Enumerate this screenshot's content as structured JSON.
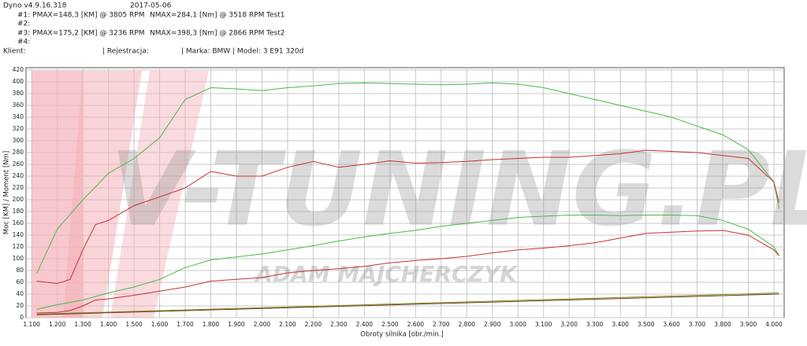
{
  "chart_data": {
    "type": "line",
    "header": {
      "software": "Dyno v4.9.16.318",
      "date": "2017-05-06",
      "run1": "#1: PMAX=148,3 [KM] @ 3805 RPM",
      "run1_torque": "NMAX=284,1 [Nm] @ 3518 RPM",
      "run1_name": "Test1",
      "run2": "#2:",
      "run3": "#3: PMAX=175,2 [KM] @ 3236 RPM",
      "run3_torque": "NMAX=398,3 [Nm] @ 2866 RPM",
      "run3_name": "Test2",
      "run4": "#4:",
      "client": "Klient:",
      "registration": "| Rejestracja:",
      "vehicle": "| Marka: BMW | Model: 3 E91 320d"
    },
    "watermark": "V-TUNING.PL",
    "watermark_author": "ADAM MAJCHERCZYK",
    "y_label": "Moc [KM] / Moment [Nm]",
    "x_label": "Obroty silnika [obr./min.]",
    "x": [
      1120,
      1200,
      1250,
      1300,
      1350,
      1400,
      1500,
      1600,
      1700,
      1800,
      1900,
      2000,
      2100,
      2200,
      2300,
      2400,
      2500,
      2600,
      2700,
      2800,
      2900,
      3000,
      3100,
      3200,
      3300,
      3400,
      3500,
      3600,
      3700,
      3800,
      3900,
      4000,
      4020
    ],
    "series": [
      {
        "color": "#4cb84c",
        "values": [
          75,
          150,
          175,
          200,
          222,
          245,
          270,
          305,
          370,
          390,
          388,
          385,
          390,
          393,
          397,
          398,
          397,
          396,
          395,
          396,
          398,
          396,
          390,
          380,
          370,
          360,
          350,
          340,
          325,
          310,
          285,
          230,
          185
        ]
      },
      {
        "color": "#c83232",
        "values": [
          62,
          58,
          65,
          115,
          158,
          165,
          190,
          205,
          220,
          248,
          240,
          240,
          255,
          265,
          255,
          260,
          266,
          262,
          263,
          265,
          268,
          270,
          272,
          272,
          275,
          278,
          284,
          282,
          280,
          275,
          270,
          230,
          195
        ]
      },
      {
        "color": "#4cb84c",
        "values": [
          14,
          22,
          26,
          30,
          36,
          42,
          52,
          65,
          85,
          98,
          103,
          108,
          115,
          122,
          130,
          137,
          143,
          148,
          155,
          160,
          165,
          170,
          172,
          174,
          174,
          173,
          174,
          174,
          173,
          165,
          150,
          120,
          105
        ]
      },
      {
        "color": "#c83232",
        "values": [
          8,
          9,
          12,
          20,
          30,
          32,
          38,
          45,
          52,
          62,
          65,
          68,
          76,
          80,
          83,
          87,
          93,
          97,
          100,
          104,
          110,
          115,
          118,
          122,
          127,
          135,
          143,
          145,
          147,
          148,
          140,
          115,
          105
        ]
      },
      {
        "color": "#8a8a20",
        "x": [
          1120,
          4020
        ],
        "values": [
          6,
          42
        ]
      },
      {
        "color": "#6a4020",
        "x": [
          1120,
          4020
        ],
        "values": [
          5,
          40
        ]
      }
    ],
    "xlim": [
      1078,
      4040
    ],
    "ylim": [
      0,
      424
    ],
    "xticks": [
      {
        "value": 1100,
        "label": "1.100"
      },
      {
        "value": 1200,
        "label": "1.200"
      },
      {
        "value": 1300,
        "label": "1.300"
      },
      {
        "value": 1400,
        "label": "1.400"
      },
      {
        "value": 1500,
        "label": "1.500"
      },
      {
        "value": 1600,
        "label": "1.600"
      },
      {
        "value": 1700,
        "label": "1.700"
      },
      {
        "value": 1800,
        "label": "1.800"
      },
      {
        "value": 1900,
        "label": "1.900"
      },
      {
        "value": 2000,
        "label": "2.000"
      },
      {
        "value": 2100,
        "label": "2.100"
      },
      {
        "value": 2200,
        "label": "2.200"
      },
      {
        "value": 2300,
        "label": "2.300"
      },
      {
        "value": 2400,
        "label": "2.400"
      },
      {
        "value": 2500,
        "label": "2.500"
      },
      {
        "value": 2600,
        "label": "2.600"
      },
      {
        "value": 2700,
        "label": "2.700"
      },
      {
        "value": 2800,
        "label": "2.800"
      },
      {
        "value": 2900,
        "label": "2.900"
      },
      {
        "value": 3000,
        "label": "3.000"
      },
      {
        "value": 3100,
        "label": "3.100"
      },
      {
        "value": 3200,
        "label": "3.200"
      },
      {
        "value": 3300,
        "label": "3.300"
      },
      {
        "value": 3400,
        "label": "3.400"
      },
      {
        "value": 3500,
        "label": "3.500"
      },
      {
        "value": 3600,
        "label": "3.600"
      },
      {
        "value": 3700,
        "label": "3.700"
      },
      {
        "value": 3800,
        "label": "3.800"
      },
      {
        "value": 3900,
        "label": "3.900"
      },
      {
        "value": 4000,
        "label": "4.000"
      }
    ],
    "yticks": [
      0,
      20,
      40,
      60,
      80,
      100,
      120,
      140,
      160,
      180,
      200,
      220,
      240,
      260,
      280,
      300,
      320,
      340,
      360,
      380,
      400,
      420
    ],
    "grid": true
  }
}
